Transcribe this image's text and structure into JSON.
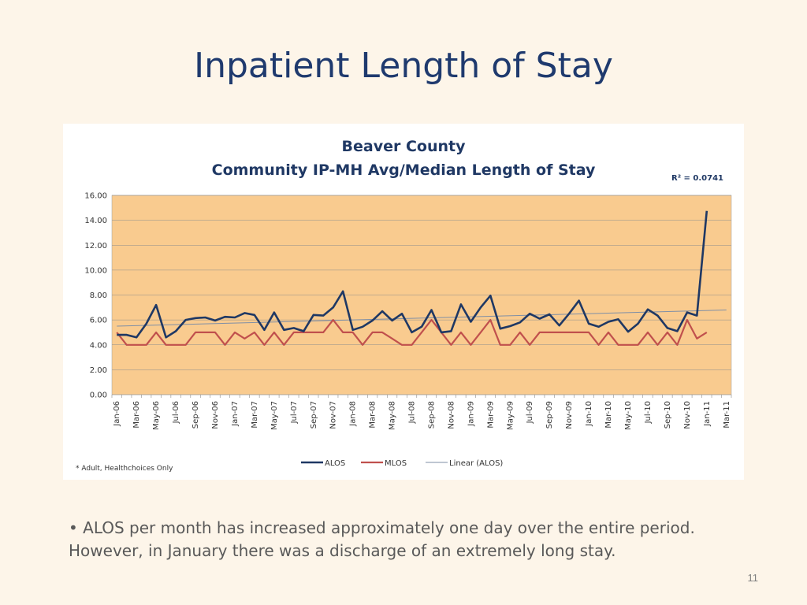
{
  "slide": {
    "title": "Inpatient Length of Stay",
    "bullet": "• ALOS per month has increased approximately one day over the entire period. However, in January  there was a discharge of an extremely long stay.",
    "page_number": "11"
  },
  "colors": {
    "background": "#FDF5E9",
    "title": "#1F3A6E",
    "plot_area": "#F9CB8F",
    "alos": "#1F3864",
    "mlos": "#C0504D",
    "linear": "#7F8FA6"
  },
  "chart_data": {
    "type": "line",
    "title": "Beaver County",
    "subtitle": "Community IP-MH Avg/Median Length of Stay",
    "r_squared_label": "R² = 0.0741",
    "footnote": "* Adult, Healthchoices Only",
    "ylim": [
      0,
      16
    ],
    "yticks": [
      "0.00",
      "2.00",
      "4.00",
      "6.00",
      "8.00",
      "10.00",
      "12.00",
      "14.00",
      "16.00"
    ],
    "grid": true,
    "legend_position": "bottom",
    "x_months": [
      "Jan-06",
      "Feb-06",
      "Mar-06",
      "Apr-06",
      "May-06",
      "Jun-06",
      "Jul-06",
      "Aug-06",
      "Sep-06",
      "Oct-06",
      "Nov-06",
      "Dec-06",
      "Jan-07",
      "Feb-07",
      "Mar-07",
      "Apr-07",
      "May-07",
      "Jun-07",
      "Jul-07",
      "Aug-07",
      "Sep-07",
      "Oct-07",
      "Nov-07",
      "Dec-07",
      "Jan-08",
      "Feb-08",
      "Mar-08",
      "Apr-08",
      "May-08",
      "Jun-08",
      "Jul-08",
      "Aug-08",
      "Sep-08",
      "Oct-08",
      "Nov-08",
      "Dec-08",
      "Jan-09",
      "Feb-09",
      "Mar-09",
      "Apr-09",
      "May-09",
      "Jun-09",
      "Jul-09",
      "Aug-09",
      "Sep-09",
      "Oct-09",
      "Nov-09",
      "Dec-09",
      "Jan-10",
      "Feb-10",
      "Mar-10",
      "Apr-10",
      "May-10",
      "Jun-10",
      "Jul-10",
      "Aug-10",
      "Sep-10",
      "Oct-10",
      "Nov-10",
      "Dec-10",
      "Jan-11",
      "Feb-11",
      "Mar-11"
    ],
    "x_tick_labels": [
      "Jan-06",
      "Mar-06",
      "May-06",
      "Jul-06",
      "Sep-06",
      "Nov-06",
      "Jan-07",
      "Mar-07",
      "May-07",
      "Jul-07",
      "Sep-07",
      "Nov-07",
      "Jan-08",
      "Mar-08",
      "May-08",
      "Jul-08",
      "Sep-08",
      "Nov-08",
      "Jan-09",
      "Mar-09",
      "May-09",
      "Jul-09",
      "Sep-09",
      "Nov-09",
      "Jan-10",
      "Mar-10",
      "May-10",
      "Jul-10",
      "Sep-10",
      "Nov-10",
      "Jan-11",
      "Mar-11"
    ],
    "series": [
      {
        "name": "ALOS",
        "values": [
          4.8,
          4.8,
          4.6,
          5.7,
          7.2,
          4.6,
          5.1,
          6.0,
          6.15,
          6.2,
          5.95,
          6.25,
          6.2,
          6.55,
          6.4,
          5.2,
          6.6,
          5.2,
          5.35,
          5.1,
          6.4,
          6.35,
          7.0,
          8.3,
          5.2,
          5.45,
          5.95,
          6.7,
          5.95,
          6.5,
          5.0,
          5.45,
          6.8,
          5.0,
          5.1,
          7.25,
          5.85,
          7.0,
          7.95,
          5.3,
          5.5,
          5.8,
          6.5,
          6.1,
          6.45,
          5.55,
          6.5,
          7.55,
          5.7,
          5.45,
          5.85,
          6.05,
          5.05,
          5.7,
          6.85,
          6.35,
          5.35,
          5.1,
          6.6,
          6.35,
          14.75
        ]
      },
      {
        "name": "MLOS",
        "values": [
          5,
          4,
          4,
          4,
          5,
          4,
          4,
          4,
          5,
          5,
          5,
          4,
          5,
          4.5,
          5,
          4,
          5,
          4,
          5,
          5,
          5,
          5,
          6,
          5,
          5,
          4,
          5,
          5,
          4.5,
          4,
          4,
          5,
          6,
          5,
          4,
          5,
          4,
          5,
          6,
          4,
          4,
          5,
          4,
          5,
          5,
          5,
          5,
          5,
          5,
          4,
          5,
          4,
          4,
          4,
          5,
          4,
          5,
          4,
          6,
          4.5,
          5
        ]
      },
      {
        "name": "Linear (ALOS)",
        "trend": [
          5.5,
          6.8
        ]
      }
    ]
  }
}
